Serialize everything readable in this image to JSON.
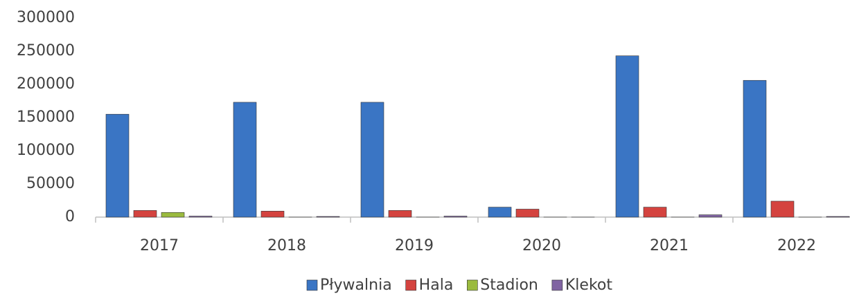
{
  "chart_data": {
    "type": "bar",
    "categories": [
      "2017",
      "2018",
      "2019",
      "2020",
      "2021",
      "2022"
    ],
    "series": [
      {
        "name": "Pływalnia",
        "color": "#3a75c4",
        "values": [
          155000,
          173000,
          173000,
          15000,
          243000,
          206000
        ]
      },
      {
        "name": "Hala",
        "color": "#d4433f",
        "values": [
          10000,
          9000,
          10000,
          12000,
          15000,
          24000
        ]
      },
      {
        "name": "Stadion",
        "color": "#9bbb3f",
        "values": [
          7000,
          0,
          0,
          0,
          0,
          0
        ]
      },
      {
        "name": "Klekot",
        "color": "#8064a2",
        "values": [
          1500,
          1000,
          1500,
          0,
          3500,
          1000
        ]
      }
    ],
    "ylim": [
      0,
      300000
    ],
    "yticks": [
      0,
      50000,
      100000,
      150000,
      200000,
      250000,
      300000
    ],
    "grid": false,
    "legend": "bottom"
  }
}
